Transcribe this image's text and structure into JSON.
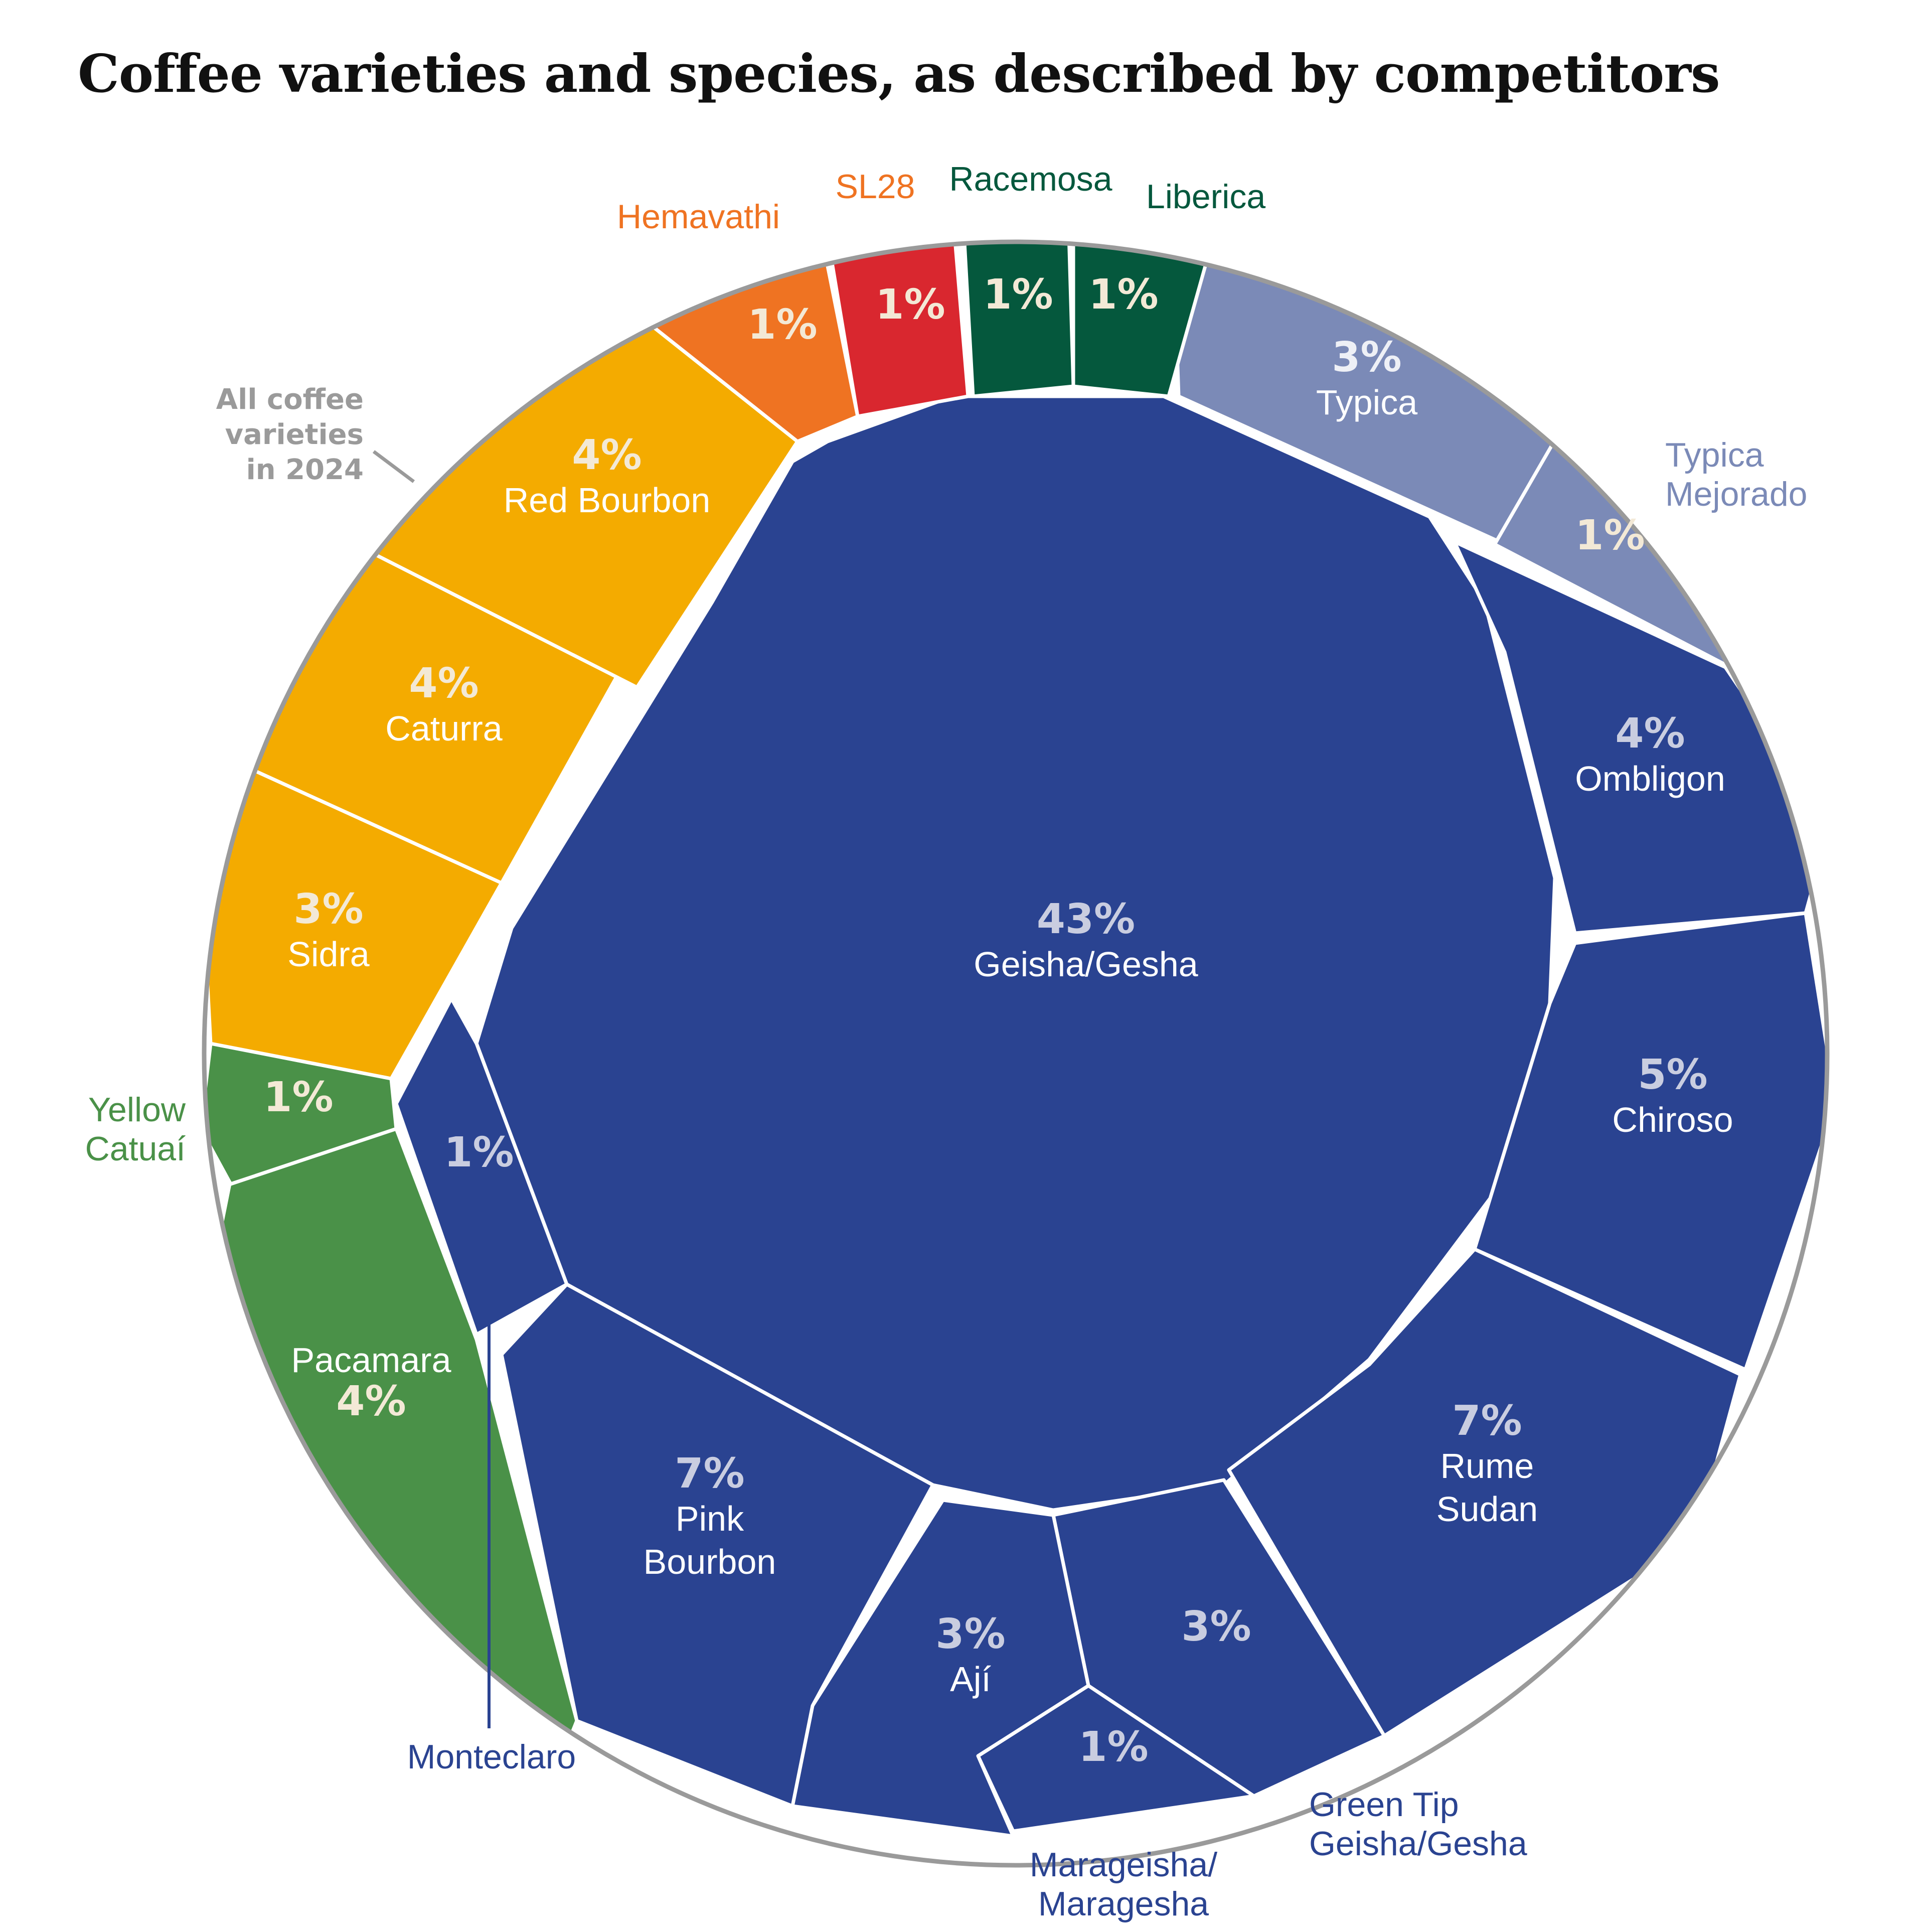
{
  "title": "Coffee varieties and species, as described by competitors",
  "annotation": "All coffee varieties in 2024",
  "colors": {
    "blue": "#2a4391",
    "blue_light": "#7b8ab7",
    "yellow": "#f4ab00",
    "orange": "#ef7322",
    "red": "#d9272f",
    "dark_green": "#05583d",
    "green": "#4a9148",
    "ring": "#9a9a9a"
  },
  "chart_data": {
    "type": "voronoi-treemap",
    "title": "Coffee varieties and species, as described by competitors",
    "total_label": "All coffee varieties in 2024",
    "unit": "%",
    "cells": [
      {
        "name": "Geisha/Gesha",
        "value": 43,
        "label": "43%",
        "group": "blue"
      },
      {
        "name": "Typica",
        "value": 3,
        "label": "3%",
        "group": "blue_light"
      },
      {
        "name": "Typica Mejorado",
        "value": 1,
        "label": "1%",
        "group": "blue_light"
      },
      {
        "name": "Ombligon",
        "value": 4,
        "label": "4%",
        "group": "blue"
      },
      {
        "name": "Chiroso",
        "value": 5,
        "label": "5%",
        "group": "blue"
      },
      {
        "name": "Rume Sudan",
        "value": 7,
        "label": "7%",
        "group": "blue"
      },
      {
        "name": "Green Tip Geisha/Gesha",
        "value": 3,
        "label": "3%",
        "group": "blue"
      },
      {
        "name": "Marageisha/Maragesha",
        "value": 1,
        "label": "1%",
        "group": "blue"
      },
      {
        "name": "Ají",
        "value": 3,
        "label": "3%",
        "group": "blue"
      },
      {
        "name": "Pink Bourbon",
        "value": 7,
        "label": "7%",
        "group": "blue"
      },
      {
        "name": "Monteclaro",
        "value": 1,
        "label": "1%",
        "group": "blue"
      },
      {
        "name": "Pacamara",
        "value": 4,
        "label": "4%",
        "group": "green"
      },
      {
        "name": "Yellow Catuaí",
        "value": 1,
        "label": "1%",
        "group": "green"
      },
      {
        "name": "Sidra",
        "value": 3,
        "label": "3%",
        "group": "yellow"
      },
      {
        "name": "Caturra",
        "value": 4,
        "label": "4%",
        "group": "yellow"
      },
      {
        "name": "Red Bourbon",
        "value": 4,
        "label": "4%",
        "group": "yellow"
      },
      {
        "name": "Hemavathi",
        "value": 1,
        "label": "1%",
        "group": "orange"
      },
      {
        "name": "SL28",
        "value": 1,
        "label": "1%",
        "group": "red"
      },
      {
        "name": "Racemosa",
        "value": 1,
        "label": "1%",
        "group": "dark_green"
      },
      {
        "name": "Liberica",
        "value": 1,
        "label": "1%",
        "group": "dark_green"
      }
    ]
  },
  "labels": {
    "geisha": [
      "Geisha/Gesha"
    ],
    "typica": [
      "Typica"
    ],
    "ombligon": [
      "Ombligon"
    ],
    "chiroso": [
      "Chiroso"
    ],
    "rume": [
      "Rume",
      "Sudan"
    ],
    "aji": [
      "Ají"
    ],
    "pink": [
      "Pink",
      "Bourbon"
    ],
    "pacamara": [
      "Pacamara"
    ],
    "sidra": [
      "Sidra"
    ],
    "caturra": [
      "Caturra"
    ],
    "redbourbon": [
      "Red Bourbon"
    ],
    "typica_mejorado": [
      "Typica",
      "Mejorado"
    ],
    "green_tip": [
      "Green Tip",
      "Geisha/Gesha"
    ],
    "marageisha": [
      "Marageisha/",
      "Maragesha"
    ],
    "monteclaro": [
      "Monteclaro"
    ],
    "yellow_catuai": [
      "Yellow",
      "Catuaí"
    ],
    "hemavathi": [
      "Hemavathi"
    ],
    "sl28": [
      "SL28"
    ],
    "racemosa": [
      "Racemosa"
    ],
    "liberica": [
      "Liberica"
    ],
    "annotation": [
      "All coffee",
      "varieties",
      "in 2024"
    ]
  }
}
